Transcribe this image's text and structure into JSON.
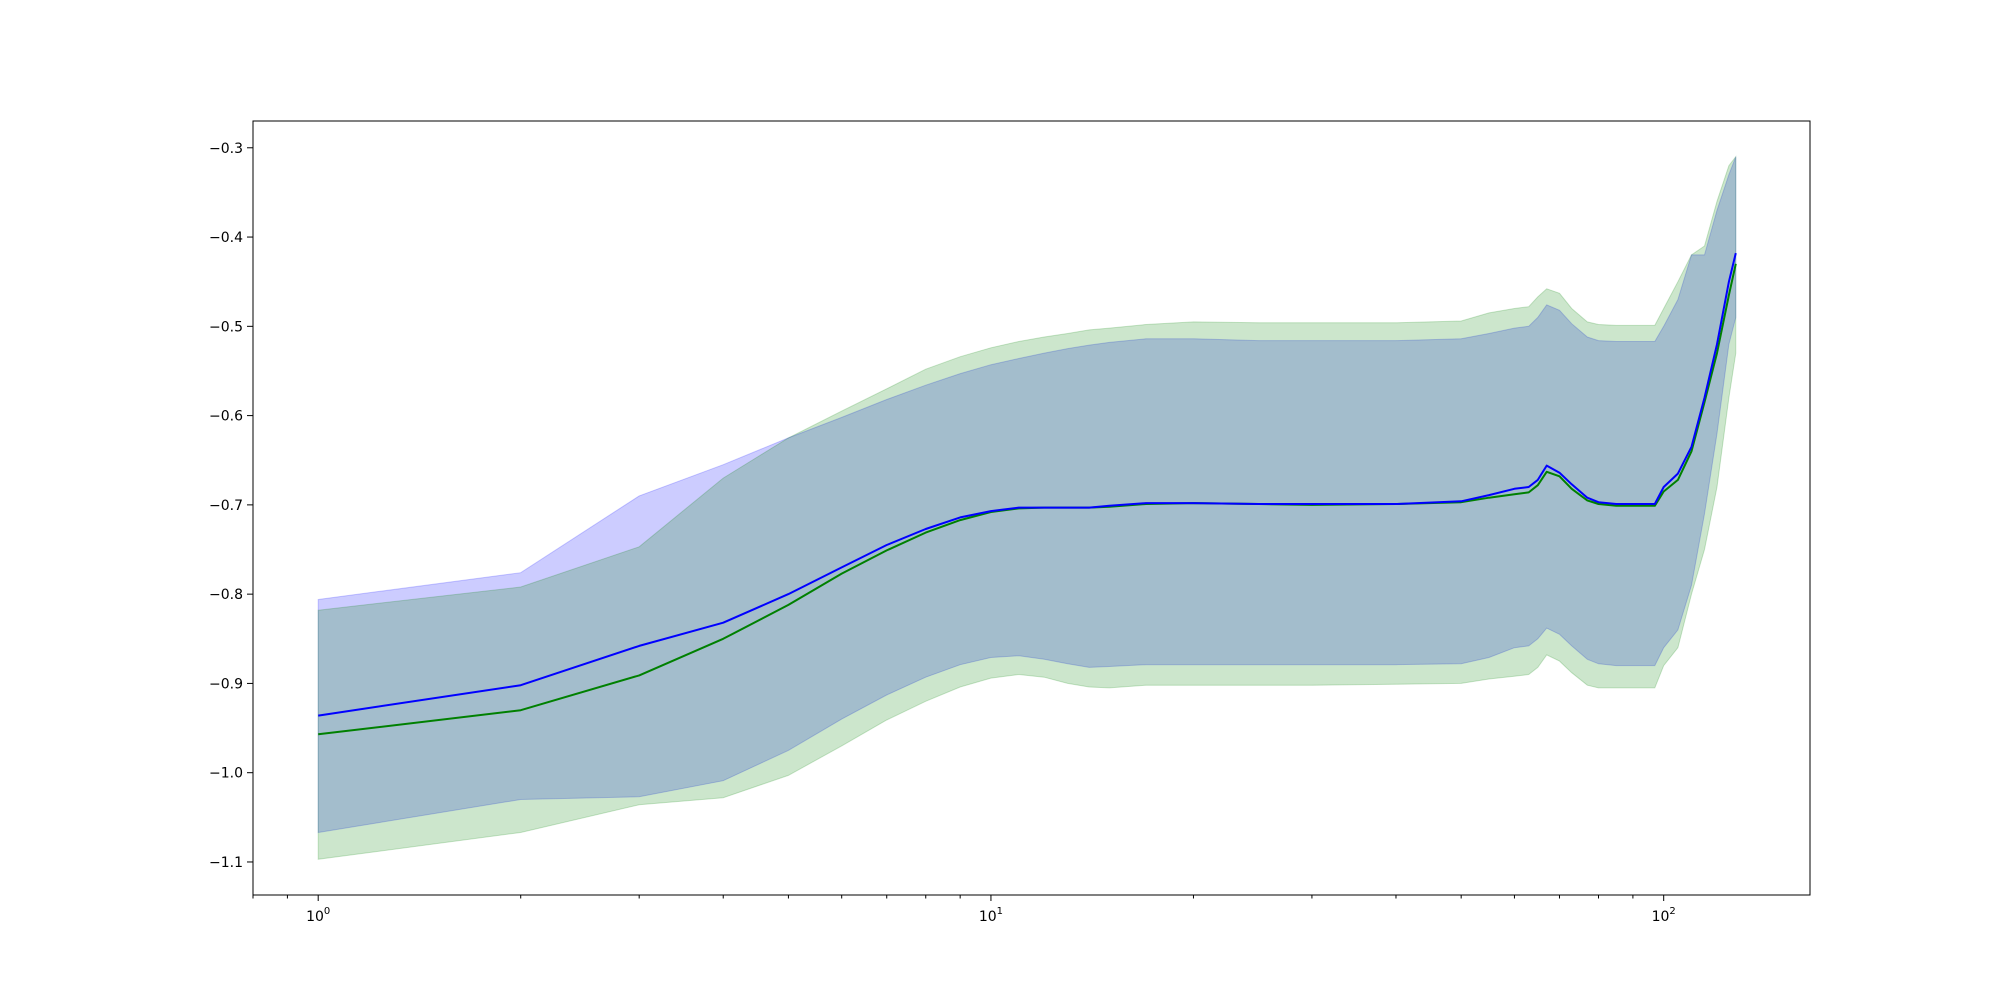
{
  "chart_data": {
    "type": "line",
    "title": "",
    "xlabel": "",
    "ylabel": "",
    "xscale": "log",
    "xlim": [
      0.8,
      165
    ],
    "ylim": [
      -1.137,
      -0.27
    ],
    "grid": false,
    "x_ticks": [
      1,
      10,
      100
    ],
    "x_tick_labels": [
      {
        "base": "10",
        "exp": "0"
      },
      {
        "base": "10",
        "exp": "1"
      },
      {
        "base": "10",
        "exp": "2"
      }
    ],
    "y_ticks": [
      -1.1,
      -1.0,
      -0.9,
      -0.8,
      -0.7,
      -0.6,
      -0.5,
      -0.4,
      -0.3
    ],
    "y_tick_labels": [
      "−1.1",
      "−1.0",
      "−0.9",
      "−0.8",
      "−0.7",
      "−0.6",
      "−0.5",
      "−0.4",
      "−0.3"
    ],
    "series": [
      {
        "color": "#0000ff",
        "band_color": "#0000ff",
        "band_opacity": 0.2,
        "x": [
          1,
          2,
          3,
          4,
          5,
          6,
          7,
          8,
          9,
          10,
          11,
          12,
          13,
          14,
          15,
          17,
          20,
          25,
          30,
          40,
          50,
          55,
          60,
          63,
          65,
          67,
          70,
          73,
          77,
          80,
          85,
          90,
          97,
          100,
          105,
          110,
          115,
          120,
          125,
          128
        ],
        "mean": [
          -0.936,
          -0.902,
          -0.858,
          -0.832,
          -0.8,
          -0.77,
          -0.745,
          -0.727,
          -0.714,
          -0.707,
          -0.703,
          -0.703,
          -0.703,
          -0.703,
          -0.701,
          -0.698,
          -0.698,
          -0.699,
          -0.699,
          -0.699,
          -0.696,
          -0.689,
          -0.682,
          -0.68,
          -0.672,
          -0.656,
          -0.664,
          -0.677,
          -0.692,
          -0.697,
          -0.699,
          -0.699,
          -0.699,
          -0.68,
          -0.665,
          -0.635,
          -0.58,
          -0.52,
          -0.45,
          -0.418
        ],
        "lower": [
          -1.067,
          -1.03,
          -1.027,
          -1.009,
          -0.975,
          -0.94,
          -0.913,
          -0.893,
          -0.879,
          -0.871,
          -0.869,
          -0.873,
          -0.878,
          -0.882,
          -0.881,
          -0.879,
          -0.879,
          -0.879,
          -0.879,
          -0.879,
          -0.878,
          -0.871,
          -0.86,
          -0.858,
          -0.85,
          -0.838,
          -0.845,
          -0.858,
          -0.873,
          -0.878,
          -0.88,
          -0.88,
          -0.88,
          -0.86,
          -0.84,
          -0.79,
          -0.71,
          -0.62,
          -0.52,
          -0.49
        ],
        "upper": [
          -0.806,
          -0.776,
          -0.69,
          -0.655,
          -0.625,
          -0.602,
          -0.582,
          -0.566,
          -0.553,
          -0.543,
          -0.536,
          -0.53,
          -0.525,
          -0.521,
          -0.518,
          -0.514,
          -0.514,
          -0.516,
          -0.516,
          -0.516,
          -0.514,
          -0.508,
          -0.502,
          -0.5,
          -0.49,
          -0.476,
          -0.482,
          -0.497,
          -0.512,
          -0.516,
          -0.517,
          -0.517,
          -0.517,
          -0.5,
          -0.47,
          -0.42,
          -0.42,
          -0.37,
          -0.33,
          -0.31
        ]
      },
      {
        "color": "#008000",
        "band_color": "#008000",
        "band_opacity": 0.2,
        "x": [
          1,
          2,
          3,
          4,
          5,
          6,
          7,
          8,
          9,
          10,
          11,
          12,
          13,
          14,
          15,
          17,
          20,
          25,
          30,
          40,
          50,
          55,
          60,
          63,
          65,
          67,
          70,
          73,
          77,
          80,
          85,
          90,
          97,
          100,
          105,
          110,
          115,
          120,
          125,
          128
        ],
        "mean": [
          -0.957,
          -0.93,
          -0.891,
          -0.85,
          -0.812,
          -0.777,
          -0.751,
          -0.731,
          -0.717,
          -0.708,
          -0.704,
          -0.703,
          -0.703,
          -0.703,
          -0.702,
          -0.699,
          -0.698,
          -0.699,
          -0.7,
          -0.699,
          -0.697,
          -0.692,
          -0.688,
          -0.686,
          -0.678,
          -0.663,
          -0.668,
          -0.682,
          -0.695,
          -0.699,
          -0.701,
          -0.701,
          -0.701,
          -0.685,
          -0.672,
          -0.64,
          -0.585,
          -0.53,
          -0.465,
          -0.43
        ],
        "lower": [
          -1.097,
          -1.067,
          -1.036,
          -1.028,
          -1.003,
          -0.97,
          -0.941,
          -0.92,
          -0.904,
          -0.894,
          -0.89,
          -0.893,
          -0.9,
          -0.904,
          -0.905,
          -0.902,
          -0.902,
          -0.902,
          -0.902,
          -0.901,
          -0.9,
          -0.895,
          -0.892,
          -0.89,
          -0.882,
          -0.868,
          -0.875,
          -0.888,
          -0.902,
          -0.905,
          -0.905,
          -0.905,
          -0.905,
          -0.88,
          -0.86,
          -0.8,
          -0.75,
          -0.68,
          -0.58,
          -0.53
        ],
        "upper": [
          -0.818,
          -0.792,
          -0.747,
          -0.67,
          -0.625,
          -0.595,
          -0.57,
          -0.548,
          -0.534,
          -0.524,
          -0.517,
          -0.512,
          -0.508,
          -0.504,
          -0.502,
          -0.498,
          -0.495,
          -0.496,
          -0.496,
          -0.496,
          -0.494,
          -0.485,
          -0.48,
          -0.478,
          -0.467,
          -0.458,
          -0.463,
          -0.48,
          -0.495,
          -0.498,
          -0.499,
          -0.499,
          -0.499,
          -0.48,
          -0.45,
          -0.42,
          -0.41,
          -0.36,
          -0.32,
          -0.31
        ]
      }
    ]
  }
}
